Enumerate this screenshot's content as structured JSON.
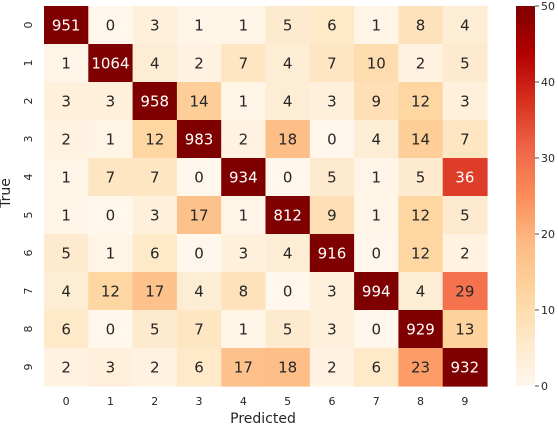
{
  "chart_data": {
    "type": "heatmap",
    "xlabel": "Predicted",
    "ylabel": "True",
    "x_categories": [
      "0",
      "1",
      "2",
      "3",
      "4",
      "5",
      "6",
      "7",
      "8",
      "9"
    ],
    "y_categories": [
      "0",
      "1",
      "2",
      "3",
      "4",
      "5",
      "6",
      "7",
      "8",
      "9"
    ],
    "values": [
      [
        951,
        0,
        3,
        1,
        1,
        5,
        6,
        1,
        8,
        4
      ],
      [
        1,
        1064,
        4,
        2,
        7,
        4,
        7,
        10,
        2,
        5
      ],
      [
        3,
        3,
        958,
        14,
        1,
        4,
        3,
        9,
        12,
        3
      ],
      [
        2,
        1,
        12,
        983,
        2,
        18,
        0,
        4,
        14,
        7
      ],
      [
        1,
        7,
        7,
        0,
        934,
        0,
        5,
        1,
        5,
        36
      ],
      [
        1,
        0,
        3,
        17,
        1,
        812,
        9,
        1,
        12,
        5
      ],
      [
        5,
        1,
        6,
        0,
        3,
        4,
        916,
        0,
        12,
        2
      ],
      [
        4,
        12,
        17,
        4,
        8,
        0,
        3,
        994,
        4,
        29
      ],
      [
        6,
        0,
        5,
        7,
        1,
        5,
        3,
        0,
        929,
        13
      ],
      [
        2,
        3,
        2,
        6,
        17,
        18,
        2,
        6,
        23,
        932
      ]
    ],
    "colorbar": {
      "min": 0,
      "max": 50,
      "ticks": [
        0,
        10,
        20,
        30,
        40,
        50
      ],
      "colormap": "OrRd"
    }
  }
}
